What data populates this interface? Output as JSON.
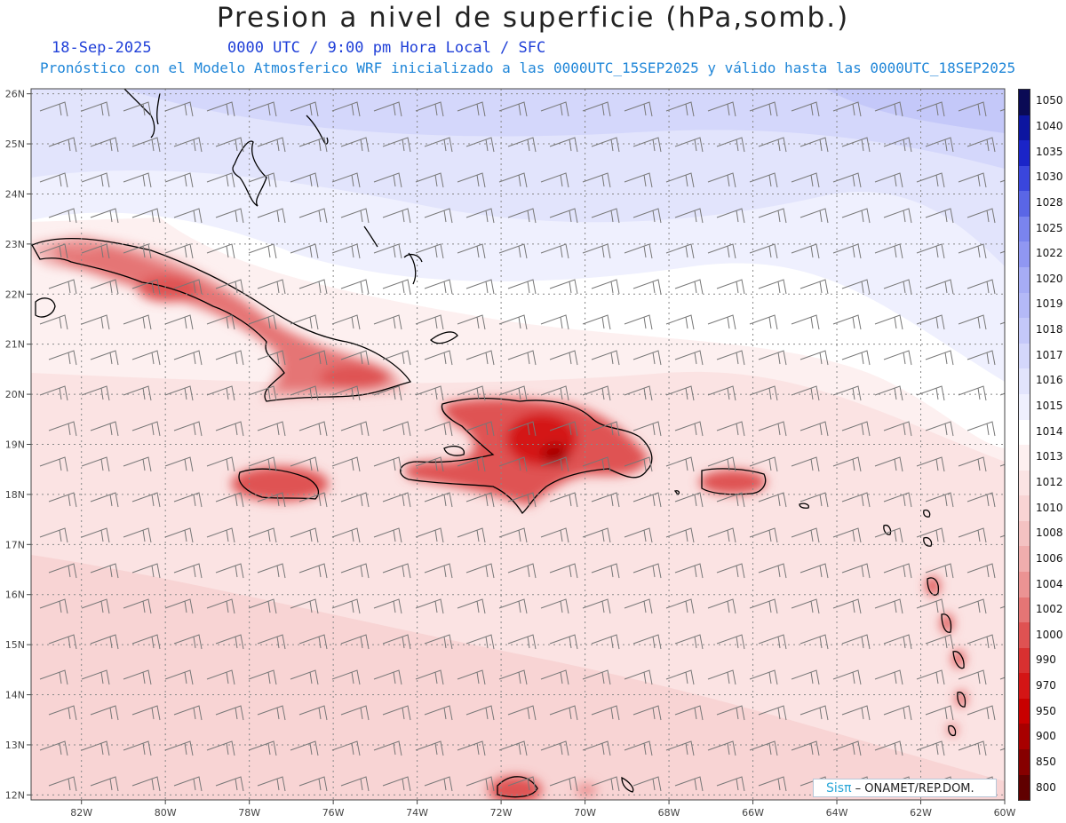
{
  "header": {
    "title": "Presion a nivel de superficie (hPa,somb.)",
    "date": "18-Sep-2025",
    "time_info": "0000 UTC / 9:00 pm Hora Local / SFC",
    "forecast_line": "Pronóstico con el Modelo Atmosferico WRF inicializado a las 0000UTC_15SEP2025 y válido hasta las  0000UTC_18SEP2025"
  },
  "map": {
    "lat_labels": [
      "26N",
      "25N",
      "24N",
      "23N",
      "22N",
      "21N",
      "20N",
      "19N",
      "18N",
      "17N",
      "16N",
      "15N",
      "14N",
      "13N",
      "12N"
    ],
    "lon_labels": [
      "82W",
      "80W",
      "78W",
      "76W",
      "74W",
      "72W",
      "70W",
      "68W",
      "66W",
      "64W",
      "62W",
      "60W"
    ],
    "lat_values": [
      26,
      25,
      24,
      23,
      22,
      21,
      20,
      19,
      18,
      17,
      16,
      15,
      14,
      13,
      12
    ],
    "lon_values": [
      -82,
      -80,
      -78,
      -76,
      -74,
      -72,
      -70,
      -68,
      -66,
      -64,
      -62,
      -60
    ],
    "extent": {
      "lon_min": -83.2,
      "lon_max": -60.0,
      "lat_min": 11.9,
      "lat_max": 26.1
    },
    "pressure_regions": [
      {
        "name": "Cuba",
        "peak_hpa": 1004
      },
      {
        "name": "Jamaica",
        "peak_hpa": 1002
      },
      {
        "name": "Hispaniola",
        "peak_hpa": 1000
      },
      {
        "name": "Puerto Rico",
        "peak_hpa": 1002
      },
      {
        "name": "Atlantic north",
        "peak_hpa": 1016
      }
    ]
  },
  "colorbar": {
    "levels": [
      "1050",
      "1040",
      "1035",
      "1030",
      "1028",
      "1025",
      "1022",
      "1020",
      "1019",
      "1018",
      "1017",
      "1016",
      "1015",
      "1014",
      "1013",
      "1012",
      "1010",
      "1008",
      "1006",
      "1004",
      "1002",
      "1000",
      "990",
      "970",
      "950",
      "900",
      "850",
      "800"
    ],
    "colors": [
      "#0a0a55",
      "#0c15a0",
      "#1a24c8",
      "#3a46dc",
      "#5a66e6",
      "#7a84ee",
      "#9097f2",
      "#a6acf5",
      "#b4b9f7",
      "#c4c8f9",
      "#d4d7fb",
      "#e2e4fc",
      "#eff0fe",
      "#ffffff",
      "#fdf0f0",
      "#fbe3e3",
      "#f8d4d4",
      "#f4c2c2",
      "#f0adad",
      "#eb9393",
      "#e57575",
      "#df5252",
      "#d83030",
      "#d41515",
      "#c80000",
      "#a80000",
      "#860000",
      "#600000"
    ]
  },
  "credit": {
    "brand": "Sisπ",
    "text": " – ONAMET/REP.DOM."
  }
}
